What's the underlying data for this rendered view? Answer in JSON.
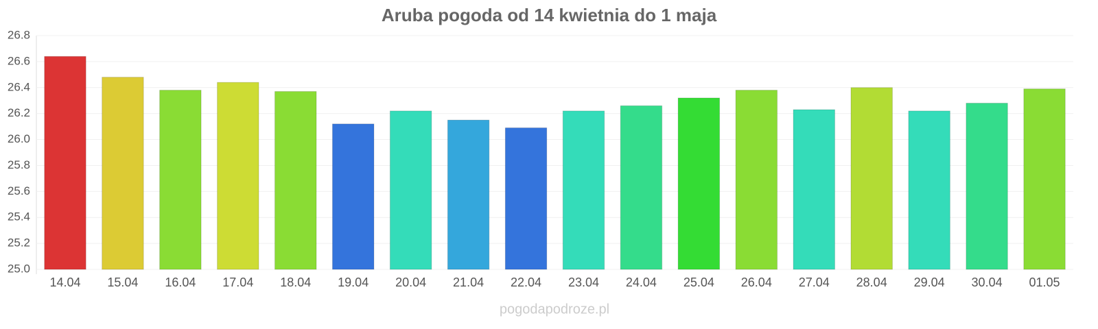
{
  "chart_data": {
    "type": "bar",
    "title": "Aruba pogoda od 14 kwietnia do 1 maja",
    "categories": [
      "14.04",
      "15.04",
      "16.04",
      "17.04",
      "18.04",
      "19.04",
      "20.04",
      "21.04",
      "22.04",
      "23.04",
      "24.04",
      "25.04",
      "26.04",
      "27.04",
      "28.04",
      "29.04",
      "30.04",
      "01.05"
    ],
    "values": [
      26.64,
      26.48,
      26.38,
      26.44,
      26.37,
      26.12,
      26.22,
      26.15,
      26.09,
      26.22,
      26.26,
      26.32,
      26.38,
      26.23,
      26.4,
      26.22,
      26.28,
      26.39
    ],
    "colors": [
      "#dc3434",
      "#dccb34",
      "#8adc34",
      "#cddc34",
      "#8adc34",
      "#3474dc",
      "#34dcb9",
      "#34a7dc",
      "#3474dc",
      "#34dcb9",
      "#34dc8b",
      "#34dc34",
      "#8adc34",
      "#34dcb9",
      "#b2dc34",
      "#34dcb9",
      "#34dc8b",
      "#8adc34"
    ],
    "ylim": [
      25.0,
      26.8
    ],
    "yticks": [
      {
        "value": 25.0,
        "label": "25.0"
      },
      25.2,
      25.4,
      25.6,
      25.8,
      {
        "value": 26.0,
        "label": "26.0"
      },
      26.2,
      26.4,
      26.6,
      26.8
    ],
    "grid": true,
    "source": "pogodapodroze.pl"
  }
}
